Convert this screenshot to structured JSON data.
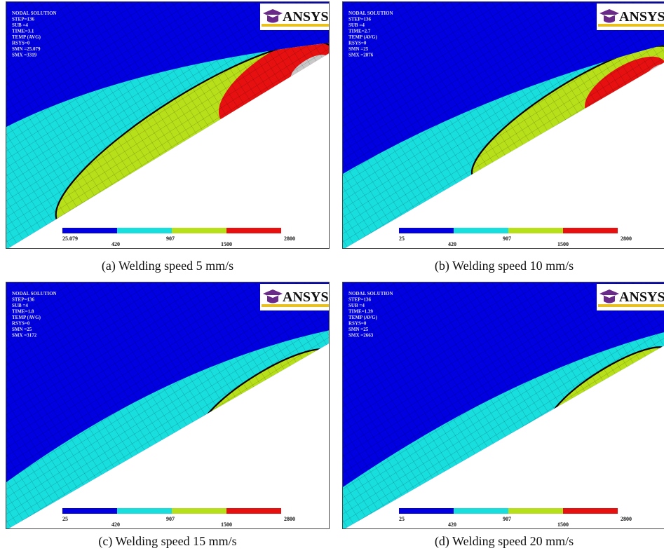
{
  "panels": [
    {
      "caption": "(a) Welding speed 5 mm/s",
      "info": [
        "NODAL SOLUTION",
        "STEP=136",
        "SUB =4",
        "TIME=3.1",
        "TEMP (AVG)",
        "RSYS=0",
        "SMN =25.079",
        "SMX =3319"
      ],
      "logo": "ANSYS",
      "legend": [
        "25.079",
        "420",
        "907",
        "1500",
        "2800"
      ]
    },
    {
      "caption": "(b) Welding speed 10 mm/s",
      "info": [
        "NODAL SOLUTION",
        "STEP=136",
        "SUB =4",
        "TIME=2.7",
        "TEMP (AVG)",
        "RSYS=0",
        "SMN =25",
        "SMX =2876"
      ],
      "logo": "ANSYS",
      "legend": [
        "25",
        "420",
        "907",
        "1500",
        "2800"
      ]
    },
    {
      "caption": "(c) Welding speed 15 mm/s",
      "info": [
        "NODAL SOLUTION",
        "STEP=136",
        "SUB =4",
        "TIME=1.8",
        "TEMP (AVG)",
        "RSYS=0",
        "SMN =25",
        "SMX =3172"
      ],
      "logo": "ANSYS",
      "legend": [
        "25",
        "420",
        "907",
        "1500",
        "2800"
      ]
    },
    {
      "caption": "(d) Welding speed 20 mm/s",
      "info": [
        "NODAL SOLUTION",
        "STEP=136",
        "SUB =4",
        "TIME=1.39",
        "TEMP (AVG)",
        "RSYS=0",
        "SMN =25",
        "SMX =2663"
      ],
      "logo": "ANSYS",
      "legend": [
        "25",
        "420",
        "907",
        "1500",
        "2800"
      ]
    }
  ]
}
